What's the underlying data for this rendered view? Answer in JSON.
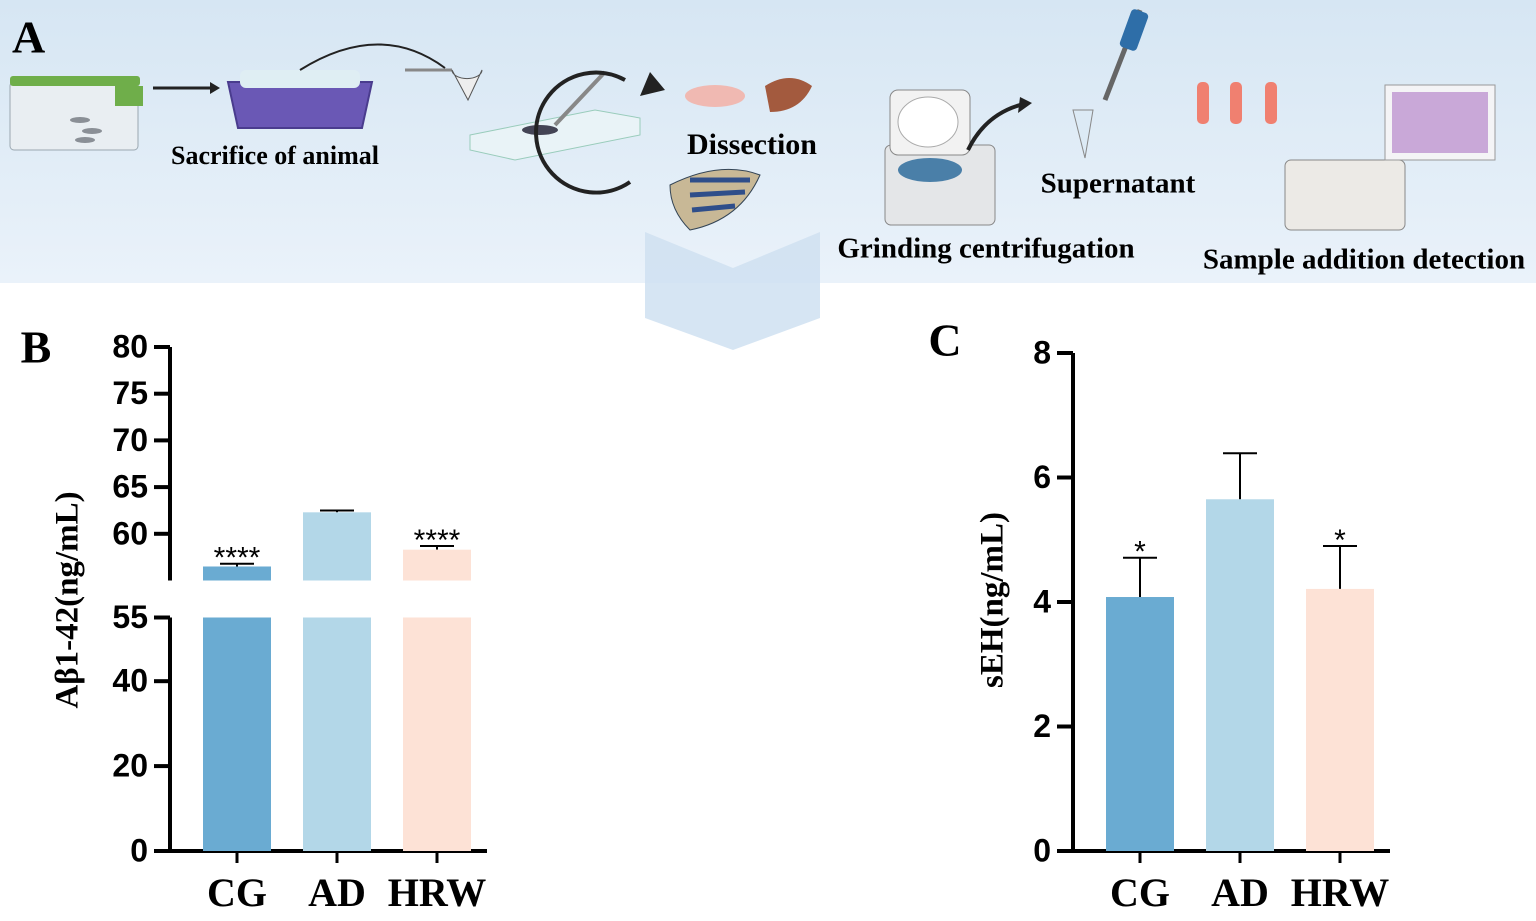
{
  "panel_a": {
    "label": "A",
    "steps": [
      "Sacrifice of animal",
      "Dissection",
      "Grinding centrifugation",
      "Supernatant",
      "Sample addition detection"
    ]
  },
  "chart_data": [
    {
      "type": "bar",
      "label": "B",
      "y_label": "Aβ1-42(ng/mL)",
      "categories": [
        "CG",
        "AD",
        "HRW"
      ],
      "values": [
        56.5,
        62.3,
        58.3
      ],
      "errors": [
        0.3,
        0.2,
        0.4
      ],
      "annotations": [
        "****",
        null,
        "****"
      ],
      "colors": [
        "#6aabd2",
        "#b3d7e8",
        "#fde2d6"
      ],
      "ylim": [
        0,
        80
      ],
      "ybreak": 55,
      "yticks": [
        0,
        20,
        40,
        55,
        60,
        65,
        70,
        75,
        80
      ]
    },
    {
      "type": "bar",
      "label": "C",
      "y_label": "sEH(ng/mL)",
      "categories": [
        "CG",
        "AD",
        "HRW"
      ],
      "values": [
        4.08,
        5.65,
        4.21
      ],
      "errors": [
        0.63,
        0.74,
        0.69
      ],
      "annotations": [
        "*",
        null,
        "*"
      ],
      "colors": [
        "#6aabd2",
        "#b3d7e8",
        "#fde2d6"
      ],
      "ylim": [
        0,
        8
      ],
      "yticks": [
        0,
        2,
        4,
        6,
        8
      ]
    }
  ]
}
